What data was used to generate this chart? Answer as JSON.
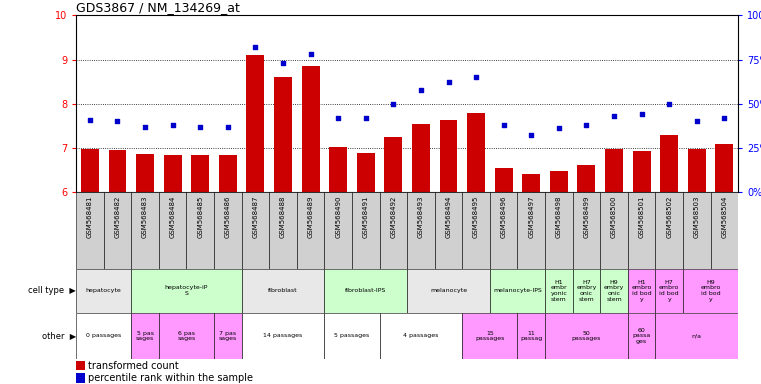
{
  "title": "GDS3867 / NM_134269_at",
  "samples": [
    "GSM568481",
    "GSM568482",
    "GSM568483",
    "GSM568484",
    "GSM568485",
    "GSM568486",
    "GSM568487",
    "GSM568488",
    "GSM568489",
    "GSM568490",
    "GSM568491",
    "GSM568492",
    "GSM568493",
    "GSM568494",
    "GSM568495",
    "GSM568496",
    "GSM568497",
    "GSM568498",
    "GSM568499",
    "GSM568500",
    "GSM568501",
    "GSM568502",
    "GSM568503",
    "GSM568504"
  ],
  "red_values": [
    6.97,
    6.95,
    6.87,
    6.84,
    6.84,
    6.83,
    9.11,
    8.6,
    8.85,
    7.02,
    6.89,
    7.25,
    7.55,
    7.62,
    7.78,
    6.55,
    6.41,
    6.48,
    6.62,
    6.98,
    6.93,
    7.28,
    6.98,
    7.08
  ],
  "blue_values": [
    41,
    40,
    37,
    38,
    37,
    37,
    82,
    73,
    78,
    42,
    42,
    50,
    58,
    62,
    65,
    38,
    32,
    36,
    38,
    43,
    44,
    50,
    40,
    42
  ],
  "ylim_left": [
    6,
    10
  ],
  "ylim_right": [
    0,
    100
  ],
  "yticks_left": [
    6,
    7,
    8,
    9,
    10
  ],
  "yticks_right": [
    0,
    25,
    50,
    75,
    100
  ],
  "ytick_labels_right": [
    "0%",
    "25%",
    "50%",
    "75%",
    "100%"
  ],
  "cell_type_groups": [
    {
      "label": "hepatocyte",
      "start": 0,
      "end": 2,
      "color": "#e8e8e8"
    },
    {
      "label": "hepatocyte-iP\nS",
      "start": 2,
      "end": 6,
      "color": "#ccffcc"
    },
    {
      "label": "fibroblast",
      "start": 6,
      "end": 9,
      "color": "#e8e8e8"
    },
    {
      "label": "fibroblast-IPS",
      "start": 9,
      "end": 12,
      "color": "#ccffcc"
    },
    {
      "label": "melanocyte",
      "start": 12,
      "end": 15,
      "color": "#e8e8e8"
    },
    {
      "label": "melanocyte-IPS",
      "start": 15,
      "end": 17,
      "color": "#ccffcc"
    },
    {
      "label": "H1\nembr\nyonic\nstem",
      "start": 17,
      "end": 18,
      "color": "#ccffcc"
    },
    {
      "label": "H7\nembry\nonic\nstem",
      "start": 18,
      "end": 19,
      "color": "#ccffcc"
    },
    {
      "label": "H9\nembry\nonic\nstem",
      "start": 19,
      "end": 20,
      "color": "#ccffcc"
    },
    {
      "label": "H1\nembro\nid bod\ny",
      "start": 20,
      "end": 21,
      "color": "#ff99ff"
    },
    {
      "label": "H7\nembro\nid bod\ny",
      "start": 21,
      "end": 22,
      "color": "#ff99ff"
    },
    {
      "label": "H9\nembro\nid bod\ny",
      "start": 22,
      "end": 24,
      "color": "#ff99ff"
    }
  ],
  "other_groups": [
    {
      "label": "0 passages",
      "start": 0,
      "end": 2,
      "color": "#ffffff"
    },
    {
      "label": "5 pas\nsages",
      "start": 2,
      "end": 3,
      "color": "#ff99ff"
    },
    {
      "label": "6 pas\nsages",
      "start": 3,
      "end": 5,
      "color": "#ff99ff"
    },
    {
      "label": "7 pas\nsages",
      "start": 5,
      "end": 6,
      "color": "#ff99ff"
    },
    {
      "label": "14 passages",
      "start": 6,
      "end": 9,
      "color": "#ffffff"
    },
    {
      "label": "5 passages",
      "start": 9,
      "end": 11,
      "color": "#ffffff"
    },
    {
      "label": "4 passages",
      "start": 11,
      "end": 14,
      "color": "#ffffff"
    },
    {
      "label": "15\npassages",
      "start": 14,
      "end": 16,
      "color": "#ff99ff"
    },
    {
      "label": "11\npassag",
      "start": 16,
      "end": 17,
      "color": "#ff99ff"
    },
    {
      "label": "50\npassages",
      "start": 17,
      "end": 20,
      "color": "#ff99ff"
    },
    {
      "label": "60\npassa\nges",
      "start": 20,
      "end": 21,
      "color": "#ff99ff"
    },
    {
      "label": "n/a",
      "start": 21,
      "end": 24,
      "color": "#ff99ff"
    }
  ],
  "bar_color": "#cc0000",
  "dot_color": "#0000cc",
  "chart_bg": "#ffffff",
  "xtick_bg": "#d0d0d0",
  "title_fontsize": 9,
  "tick_fontsize": 7,
  "label_fontsize": 6,
  "small_fontsize": 5
}
